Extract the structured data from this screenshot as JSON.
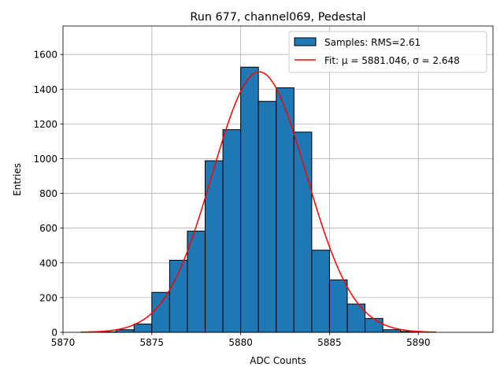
{
  "chart_data": {
    "type": "histogram",
    "title": "Run 677, channel069, Pedestal",
    "xlabel": "ADC Counts",
    "ylabel": "Entries",
    "xlim": [
      5870,
      5894.2
    ],
    "ylim": [
      0,
      1764
    ],
    "x_ticks": [
      5870,
      5875,
      5880,
      5885,
      5890
    ],
    "y_ticks": [
      0,
      200,
      400,
      600,
      800,
      1000,
      1200,
      1400,
      1600
    ],
    "grid": true,
    "legend_position": "top-right",
    "bar_color": "#1f77b4",
    "bar_edge_color": "#000000",
    "fit_color": "#ff0000",
    "series": [
      {
        "name": "Samples: RMS=2.61",
        "kind": "bars",
        "bins": [
          {
            "x0": 5872,
            "x1": 5873,
            "value": 3
          },
          {
            "x0": 5873,
            "x1": 5874,
            "value": 15
          },
          {
            "x0": 5874,
            "x1": 5875,
            "value": 48
          },
          {
            "x0": 5875,
            "x1": 5876,
            "value": 230
          },
          {
            "x0": 5876,
            "x1": 5877,
            "value": 415
          },
          {
            "x0": 5877,
            "x1": 5878,
            "value": 583
          },
          {
            "x0": 5878,
            "x1": 5879,
            "value": 988
          },
          {
            "x0": 5879,
            "x1": 5880,
            "value": 1167
          },
          {
            "x0": 5880,
            "x1": 5881,
            "value": 1527
          },
          {
            "x0": 5881,
            "x1": 5882,
            "value": 1330
          },
          {
            "x0": 5882,
            "x1": 5883,
            "value": 1408
          },
          {
            "x0": 5883,
            "x1": 5884,
            "value": 1153
          },
          {
            "x0": 5884,
            "x1": 5885,
            "value": 473
          },
          {
            "x0": 5885,
            "x1": 5886,
            "value": 302
          },
          {
            "x0": 5886,
            "x1": 5887,
            "value": 163
          },
          {
            "x0": 5887,
            "x1": 5888,
            "value": 80
          },
          {
            "x0": 5888,
            "x1": 5889,
            "value": 15
          },
          {
            "x0": 5889,
            "x1": 5890,
            "value": 5
          }
        ]
      },
      {
        "name": "Fit: μ = 5881.046, σ = 2.648",
        "kind": "gaussian",
        "mu": 5881.046,
        "sigma": 2.648,
        "amplitude": 1500,
        "x_range": [
          5871,
          5891
        ]
      }
    ]
  }
}
